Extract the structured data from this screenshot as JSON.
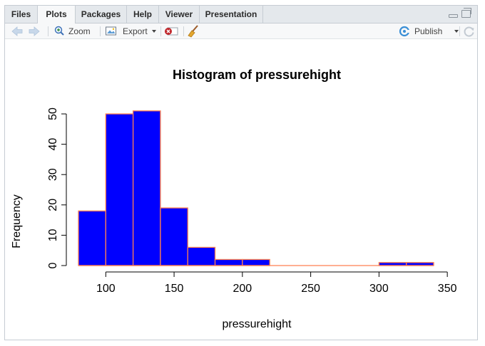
{
  "tabs": [
    {
      "label": "Files",
      "active": false
    },
    {
      "label": "Plots",
      "active": true
    },
    {
      "label": "Packages",
      "active": false
    },
    {
      "label": "Help",
      "active": false
    },
    {
      "label": "Viewer",
      "active": false
    },
    {
      "label": "Presentation",
      "active": false
    }
  ],
  "toolbar": {
    "zoom_label": "Zoom",
    "export_label": "Export",
    "publish_label": "Publish"
  },
  "icons": {
    "back": "arrow-left-icon",
    "forward": "arrow-right-icon",
    "zoom": "magnifier-icon",
    "export": "export-image-icon",
    "remove": "remove-plot-icon",
    "clear": "broom-icon",
    "publish": "publish-icon",
    "refresh": "refresh-icon"
  },
  "colors": {
    "bar_fill": "#0000ff",
    "bar_border": "#ff7f50"
  },
  "chart_data": {
    "type": "bar",
    "title": "Histogram of pressurehight",
    "xlabel": "pressurehight",
    "ylabel": "Frequency",
    "bins": [
      [
        80,
        100
      ],
      [
        100,
        120
      ],
      [
        120,
        140
      ],
      [
        140,
        160
      ],
      [
        160,
        180
      ],
      [
        180,
        200
      ],
      [
        200,
        220
      ],
      [
        220,
        240
      ],
      [
        240,
        260
      ],
      [
        260,
        280
      ],
      [
        280,
        300
      ],
      [
        300,
        320
      ],
      [
        320,
        340
      ]
    ],
    "values": [
      18,
      50,
      51,
      19,
      6,
      2,
      2,
      0,
      0,
      0,
      0,
      1,
      1
    ],
    "xlim": [
      80,
      350
    ],
    "ylim": [
      0,
      50
    ],
    "x_ticks": [
      100,
      150,
      200,
      250,
      300,
      350
    ],
    "y_ticks": [
      0,
      10,
      20,
      30,
      40,
      50
    ],
    "grid": false,
    "legend": "none"
  }
}
